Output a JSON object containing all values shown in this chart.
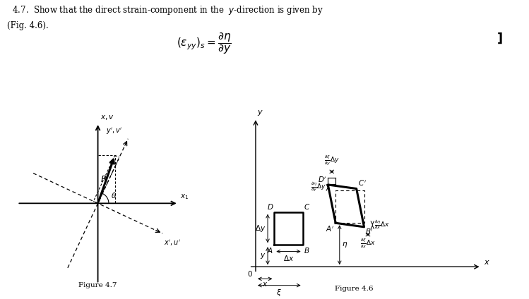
{
  "bg_color": "#ffffff",
  "text_color": "#000000",
  "fig47_caption": "Figure 4.7",
  "fig46_caption": "Figure 4.6"
}
